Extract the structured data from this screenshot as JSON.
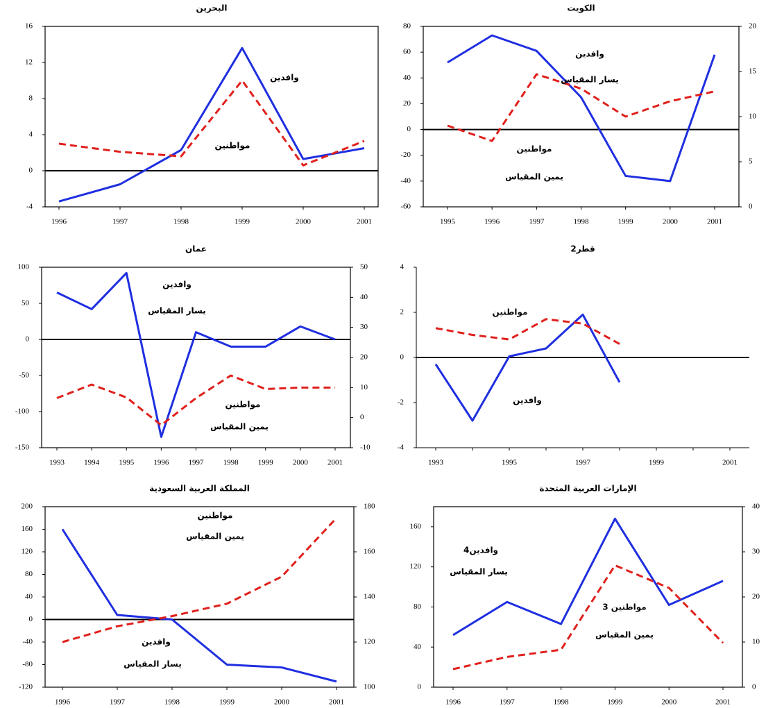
{
  "chart_data": [
    {
      "type": "line",
      "title": "البحرين",
      "categories": [
        "1996",
        "1997",
        "1998",
        "1999",
        "2000",
        "2001"
      ],
      "ylim": [
        -4,
        16
      ],
      "yticks": [
        -4,
        0,
        4,
        8,
        12,
        16
      ],
      "zero_line": true,
      "frame": true,
      "series": [
        {
          "color": "#1f2fe0",
          "dashed": false,
          "values": [
            -3.4,
            -1.5,
            2.3,
            13.6,
            1.3,
            2.5
          ]
        },
        {
          "color": "#e0201c",
          "dashed": true,
          "values": [
            3.0,
            2.1,
            1.6,
            10,
            0.6,
            3.3
          ]
        }
      ],
      "annotations": [
        "وافدين",
        "مواطنين"
      ]
    },
    {
      "type": "line",
      "title": "الكويت",
      "categories": [
        "1995",
        "1996",
        "1997",
        "1998",
        "1999",
        "2000",
        "2001"
      ],
      "ylim": [
        -60,
        80
      ],
      "yticks": [
        -60,
        -40,
        -20,
        0,
        20,
        40,
        60,
        80
      ],
      "y2lim": [
        0,
        20
      ],
      "y2ticks": [
        0,
        5,
        10,
        15,
        20
      ],
      "zero_line": true,
      "frame": true,
      "series": [
        {
          "color": "#1f2fe0",
          "dashed": false,
          "values": [
            52,
            73,
            61,
            25,
            -36,
            -40,
            58
          ]
        },
        {
          "color": "#e0201c",
          "dashed": true,
          "axis": "y2",
          "values": [
            9.0,
            7.3,
            14.7,
            13.1,
            10.0,
            11.7,
            12.8
          ]
        }
      ],
      "annotations": [
        "وافدين",
        "يسار المقياس",
        "مواطنين",
        "يمين المقياس"
      ]
    },
    {
      "type": "line",
      "title": "عمان",
      "categories": [
        "1993",
        "1994",
        "1995",
        "1996",
        "1997",
        "1998",
        "1999",
        "2000",
        "2001"
      ],
      "ylim": [
        -150,
        100
      ],
      "yticks": [
        -150,
        -100,
        -50,
        0,
        50,
        100
      ],
      "y2lim": [
        -10,
        50
      ],
      "y2ticks": [
        -10,
        0,
        10,
        20,
        30,
        40,
        50
      ],
      "zero_line": true,
      "frame": true,
      "series": [
        {
          "color": "#1f2fe0",
          "dashed": false,
          "values": [
            65,
            42,
            92,
            -135,
            10,
            -10,
            -10,
            18,
            0
          ]
        },
        {
          "color": "#e0201c",
          "dashed": true,
          "axis": "y2",
          "values": [
            6.5,
            11,
            6.7,
            -2.5,
            6.5,
            14,
            9.5,
            10,
            10
          ]
        }
      ],
      "annotations": [
        "وافدين",
        "يسار المقياس",
        "مواطنين",
        "يمين المقياس"
      ]
    },
    {
      "type": "line",
      "title": "قطر2",
      "categories": [
        "1993",
        null,
        "1995",
        null,
        "1997",
        null,
        "1999",
        null,
        "2001"
      ],
      "ylim": [
        -4,
        4
      ],
      "yticks": [
        -4,
        -2,
        0,
        2,
        4
      ],
      "zero_line": true,
      "frame": false,
      "series": [
        {
          "color": "#1f2fe0",
          "dashed": false,
          "values": [
            -0.3,
            -2.8,
            0.05,
            0.4,
            1.9,
            -1.1,
            null,
            null,
            null
          ]
        },
        {
          "color": "#e0201c",
          "dashed": true,
          "values": [
            1.3,
            1.0,
            0.8,
            1.7,
            1.5,
            0.6,
            null,
            null,
            null
          ]
        }
      ],
      "annotations": [
        "مواطنين",
        "وافدين"
      ]
    },
    {
      "type": "line",
      "title": "المملكة العربية السعودية",
      "categories": [
        "1996",
        "1997",
        "1998",
        "1999",
        "2000",
        "2001"
      ],
      "ylim": [
        -120,
        200
      ],
      "yticks": [
        -120,
        -80,
        -40,
        0,
        40,
        80,
        120,
        160,
        200
      ],
      "y2lim": [
        100,
        180
      ],
      "y2ticks": [
        100,
        120,
        140,
        160,
        180
      ],
      "zero_line": true,
      "frame": true,
      "series": [
        {
          "color": "#1f2fe0",
          "dashed": false,
          "values": [
            160,
            8,
            0,
            -80,
            -85,
            -110
          ]
        },
        {
          "color": "#e0201c",
          "dashed": true,
          "axis": "y2",
          "values": [
            120,
            127,
            131.5,
            137,
            149,
            175
          ]
        }
      ],
      "annotations": [
        "مواطنين",
        "يمين المقياس",
        "وافدين",
        "يسار المقياس"
      ]
    },
    {
      "type": "line",
      "title": "الإمارات العربية المتحدة",
      "categories": [
        "1996",
        "1997",
        "1998",
        "1999",
        "2000",
        "2001"
      ],
      "ylim": [
        0,
        180
      ],
      "yticks": [
        0,
        40,
        80,
        120,
        160
      ],
      "y2lim": [
        0,
        40
      ],
      "y2ticks": [
        0,
        10,
        20,
        30,
        40
      ],
      "zero_line": false,
      "frame": true,
      "series": [
        {
          "color": "#1f2fe0",
          "dashed": false,
          "values": [
            52,
            85,
            63,
            168,
            82,
            106
          ]
        },
        {
          "color": "#e0201c",
          "dashed": true,
          "axis": "y2",
          "values": [
            4,
            6.7,
            8.3,
            27,
            22,
            9.8
          ]
        }
      ],
      "annotations": [
        "وافدين4",
        "يسار المقياس",
        "مواطنين 3",
        "يمين المقياس"
      ]
    }
  ]
}
